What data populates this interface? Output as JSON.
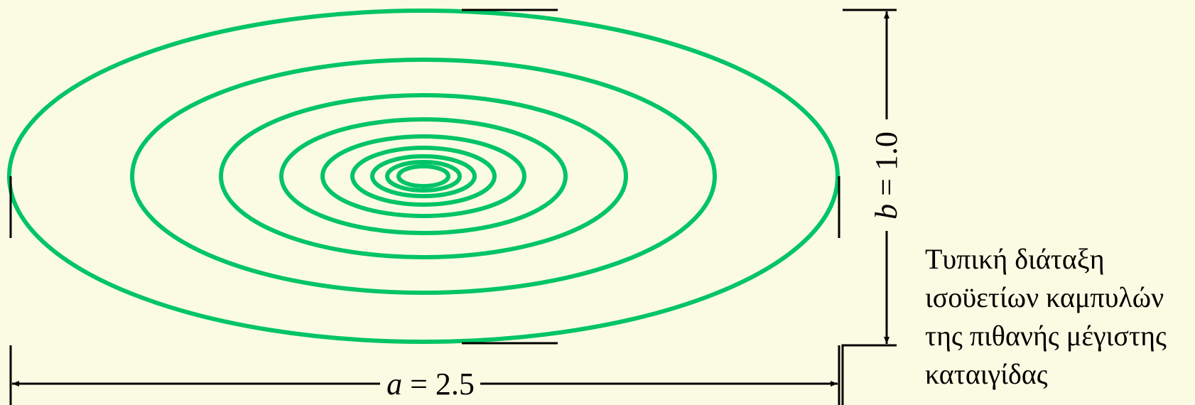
{
  "colors": {
    "background": "#fbfbe3",
    "isohyet": "#00c466",
    "dimension": "#000000"
  },
  "dimensions": {
    "a": {
      "symbol": "a",
      "equals": " = ",
      "value": "2.5"
    },
    "b": {
      "symbol": "b",
      "equals": " = ",
      "value": "1.0"
    }
  },
  "isohyets": {
    "count": 9,
    "shape": "concentric ellipses"
  },
  "caption": {
    "line1": "Τυπική διάταξη",
    "line2": "ισοϋετίων καμπυλών",
    "line3": "της πιθανής μέγιστης",
    "line4": "καταιγίδας"
  }
}
